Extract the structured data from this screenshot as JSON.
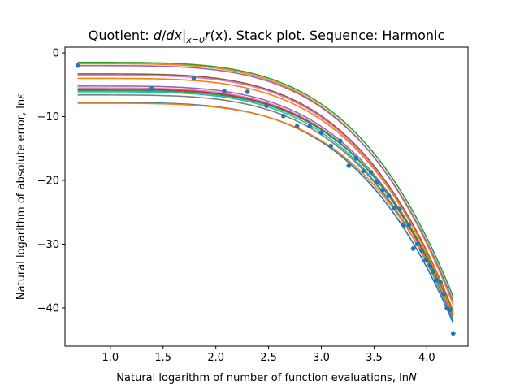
{
  "chart_data": {
    "type": "line",
    "title": "Quotient: d/dx|x=0 r(x). Stack plot. Sequence: Harmonic",
    "title_parts": {
      "prefix": "Quotient: ",
      "d": "d",
      "slash": "/",
      "dx": "dx",
      "bar": "|",
      "subscript": "x=0",
      "r": "r",
      "arg": "(x)",
      "suffix": ". Stack plot. Sequence: Harmonic"
    },
    "xlabel": "Natural logarithm of number of function evaluations, ln",
    "xlabel_var": "N",
    "ylabel": "Natural logarithm of absolute error, ln",
    "ylabel_var": "ε",
    "xlim": [
      0.57,
      4.39
    ],
    "ylim": [
      -46.0,
      0.9
    ],
    "xticks": [
      1.0,
      1.5,
      2.0,
      2.5,
      3.0,
      3.5,
      4.0
    ],
    "xtick_labels": [
      "1.0",
      "1.5",
      "2.0",
      "2.5",
      "3.0",
      "3.5",
      "4.0"
    ],
    "yticks": [
      0,
      -10,
      -20,
      -30,
      -40
    ],
    "ytick_labels": [
      "0",
      "−10",
      "−20",
      "−30",
      "−40"
    ],
    "grid": false,
    "scatter": {
      "color": "#1f77b4",
      "points": [
        [
          0.69,
          -2.0
        ],
        [
          1.39,
          -5.6
        ],
        [
          1.79,
          -4.0
        ],
        [
          2.08,
          -6.0
        ],
        [
          2.3,
          -6.1
        ],
        [
          2.48,
          -8.3
        ],
        [
          2.64,
          -9.9
        ],
        [
          2.77,
          -11.5
        ],
        [
          2.89,
          -11.5
        ],
        [
          3.0,
          -12.5
        ],
        [
          3.09,
          -14.6
        ],
        [
          3.18,
          -13.8
        ],
        [
          3.26,
          -17.7
        ],
        [
          3.33,
          -16.5
        ],
        [
          3.4,
          -18.5
        ],
        [
          3.47,
          -18.7
        ],
        [
          3.53,
          -20.3
        ],
        [
          3.58,
          -21.5
        ],
        [
          3.64,
          -22.4
        ],
        [
          3.69,
          -24.3
        ],
        [
          3.74,
          -24.5
        ],
        [
          3.78,
          -27.0
        ],
        [
          3.83,
          -27.0
        ],
        [
          3.87,
          -30.7
        ],
        [
          3.91,
          -30.0
        ],
        [
          3.95,
          -31.0
        ],
        [
          3.99,
          -32.5
        ],
        [
          4.03,
          -33.4
        ],
        [
          4.06,
          -34.3
        ],
        [
          4.09,
          -35.6
        ],
        [
          4.13,
          -36.0
        ],
        [
          4.16,
          -37.8
        ],
        [
          4.19,
          -40.0
        ],
        [
          4.22,
          -40.3
        ],
        [
          4.25,
          -44.0
        ]
      ]
    },
    "series": [
      {
        "color": "#2ca02c",
        "y0": -1.5,
        "y_end": -38.3
      },
      {
        "color": "#ff7f0e",
        "y0": -1.7,
        "y_end": -39.5
      },
      {
        "color": "#9467bd",
        "y0": -2.0,
        "y_end": -39.0
      },
      {
        "color": "#8c564b",
        "y0": -3.3,
        "y_end": -40.5
      },
      {
        "color": "#e377c2",
        "y0": -3.5,
        "y_end": -41.0
      },
      {
        "color": "#ff7f0e",
        "y0": -4.0,
        "y_end": -40.7
      },
      {
        "color": "#9467bd",
        "y0": -5.2,
        "y_end": -41.0
      },
      {
        "color": "#e377c2",
        "y0": -5.5,
        "y_end": -41.5
      },
      {
        "color": "#d62728",
        "y0": -5.7,
        "y_end": -41.2
      },
      {
        "color": "#2ca02c",
        "y0": -5.9,
        "y_end": -40.8
      },
      {
        "color": "#17becf",
        "y0": -6.1,
        "y_end": -42.0
      },
      {
        "color": "#7f7f7f",
        "y0": -6.6,
        "y_end": -41.8
      },
      {
        "color": "#1f77b4",
        "y0": -7.8,
        "y_end": -42.4
      },
      {
        "color": "#ff7f0e",
        "y0": -7.9,
        "y_end": -41.0
      }
    ],
    "series_x_range": [
      0.69,
      4.25
    ]
  }
}
